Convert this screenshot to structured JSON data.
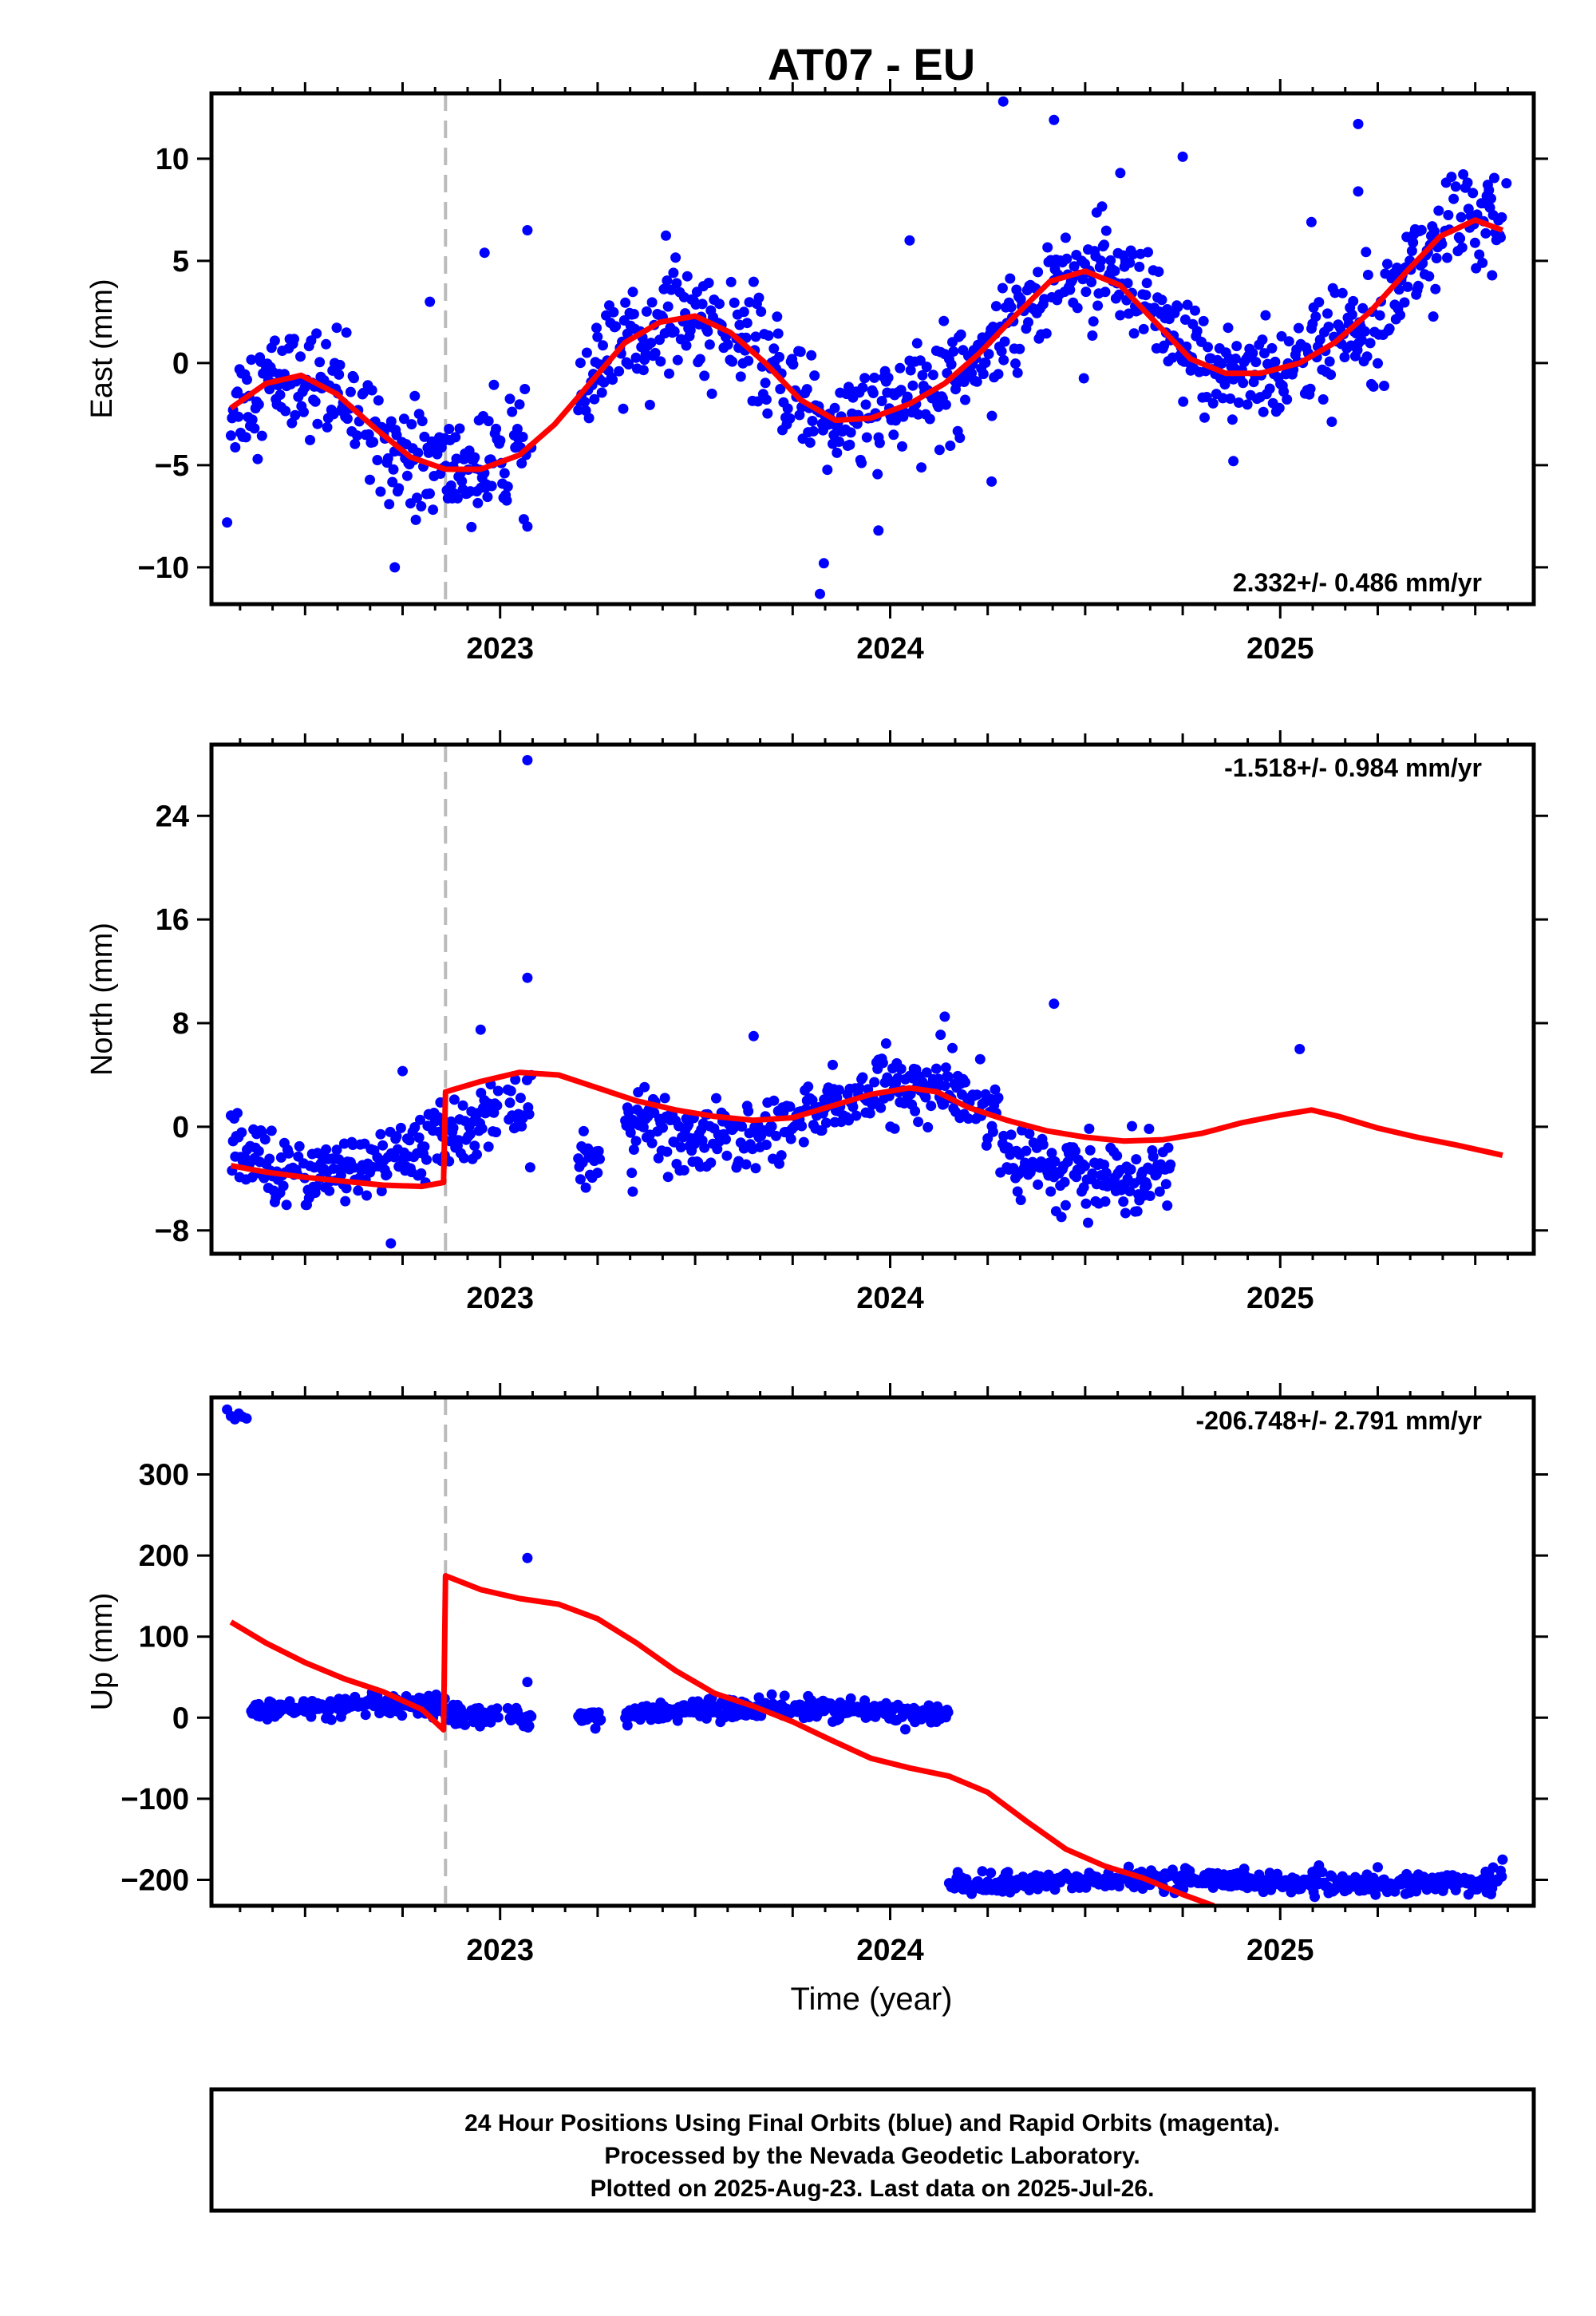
{
  "title": "AT07 - EU",
  "xlabel": "Time (year)",
  "footer": {
    "line1": "24 Hour Positions Using Final Orbits (blue) and Rapid Orbits (magenta).",
    "line2": "Processed by the Nevada Geodetic Laboratory.",
    "line3": "Plotted on 2025-Aug-23. Last data on 2025-Jul-26."
  },
  "colors": {
    "points": "#0000ff",
    "fit": "#ff0000",
    "event_line": "#bbbbbb",
    "frame": "#000000"
  },
  "chart_data": [
    {
      "type": "scatter",
      "name": "east",
      "ylabel": "East (mm)",
      "rate_text": "2.332+/- 0.486 mm/yr",
      "rate_position": "bottom-right",
      "xlim": [
        2022.26,
        2025.65
      ],
      "ylim": [
        -11.8,
        13.2
      ],
      "yticks": [
        10,
        5,
        0,
        -5,
        -10
      ],
      "ytick_labels": [
        "10",
        "5",
        "0",
        "−5",
        "−10"
      ],
      "xticks": [
        2023,
        2024,
        2025
      ],
      "xtick_labels": [
        "2023",
        "2024",
        "2025"
      ],
      "event_line_x": 2022.86,
      "fit": {
        "x": [
          2022.31,
          2022.4,
          2022.49,
          2022.58,
          2022.68,
          2022.77,
          2022.86,
          2022.95,
          2023.05,
          2023.14,
          2023.23,
          2023.32,
          2023.41,
          2023.5,
          2023.59,
          2023.68,
          2023.77,
          2023.86,
          2023.95,
          2024.05,
          2024.14,
          2024.23,
          2024.32,
          2024.41,
          2024.5,
          2024.59,
          2024.68,
          2024.77,
          2024.86,
          2024.95,
          2025.05,
          2025.14,
          2025.23,
          2025.32,
          2025.41,
          2025.5,
          2025.57
        ],
        "y": [
          -2.2,
          -1.0,
          -0.6,
          -1.5,
          -3.2,
          -4.6,
          -5.2,
          -5.2,
          -4.5,
          -3.0,
          -1.0,
          1.0,
          2.0,
          2.3,
          1.5,
          0.0,
          -1.8,
          -2.8,
          -2.7,
          -2.0,
          -1.0,
          0.5,
          2.3,
          4.0,
          4.5,
          3.8,
          2.0,
          0.2,
          -0.5,
          -0.5,
          0.0,
          1.0,
          2.5,
          4.4,
          6.2,
          7.0,
          6.5
        ]
      },
      "seasonal": {
        "trend_start": -2.2,
        "trend_end": 6.5,
        "components": [
          {
            "amp": 3.0,
            "freq": 1.0,
            "peak_year": 2023.5
          }
        ],
        "noise_sd": 1.3,
        "gaps": [
          [
            2023.08,
            2023.2
          ]
        ]
      },
      "outliers": [
        {
          "x": 2022.3,
          "y": -7.8
        },
        {
          "x": 2022.73,
          "y": -10.0
        },
        {
          "x": 2022.82,
          "y": 3.0
        },
        {
          "x": 2022.96,
          "y": 5.4
        },
        {
          "x": 2023.07,
          "y": 6.5
        },
        {
          "x": 2023.07,
          "y": -8.0
        },
        {
          "x": 2023.82,
          "y": -11.3
        },
        {
          "x": 2023.83,
          "y": -9.8
        },
        {
          "x": 2024.05,
          "y": 6.0
        },
        {
          "x": 2024.29,
          "y": 12.8
        },
        {
          "x": 2024.42,
          "y": 11.9
        },
        {
          "x": 2024.59,
          "y": 9.3
        },
        {
          "x": 2024.75,
          "y": 10.1
        },
        {
          "x": 2025.2,
          "y": 11.7
        },
        {
          "x": 2025.2,
          "y": 8.4
        },
        {
          "x": 2025.58,
          "y": 8.8
        },
        {
          "x": 2024.26,
          "y": -5.8
        },
        {
          "x": 2023.97,
          "y": -8.2
        },
        {
          "x": 2024.88,
          "y": -4.8
        },
        {
          "x": 2025.08,
          "y": 6.9
        }
      ]
    },
    {
      "type": "scatter",
      "name": "north",
      "ylabel": "North (mm)",
      "rate_text": "-1.518+/- 0.984 mm/yr",
      "rate_position": "top-right",
      "xlim": [
        2022.26,
        2025.65
      ],
      "ylim": [
        -9.8,
        29.5
      ],
      "yticks": [
        24,
        16,
        8,
        0,
        -8
      ],
      "ytick_labels": [
        "24",
        "16",
        "8",
        "0",
        "−8"
      ],
      "xticks": [
        2023,
        2024,
        2025
      ],
      "xtick_labels": [
        "2023",
        "2024",
        "2025"
      ],
      "event_line_x": 2022.86,
      "fit": {
        "x": [
          2022.31,
          2022.4,
          2022.5,
          2022.6,
          2022.7,
          2022.8,
          2022.855,
          2022.86,
          2022.95,
          2023.05,
          2023.15,
          2023.25,
          2023.35,
          2023.45,
          2023.55,
          2023.65,
          2023.75,
          2023.85,
          2023.95,
          2024.05,
          2024.12,
          2024.2,
          2024.3,
          2024.4,
          2024.5,
          2024.6,
          2024.7,
          2024.8,
          2024.9,
          2025.0,
          2025.08,
          2025.15,
          2025.25,
          2025.35,
          2025.45,
          2025.57
        ],
        "y": [
          -3.0,
          -3.5,
          -3.9,
          -4.2,
          -4.5,
          -4.6,
          -4.3,
          2.7,
          3.5,
          4.2,
          4.0,
          3.0,
          2.0,
          1.3,
          0.8,
          0.5,
          0.7,
          1.6,
          2.5,
          3.0,
          2.7,
          1.5,
          0.5,
          -0.3,
          -0.8,
          -1.1,
          -1.0,
          -0.5,
          0.3,
          0.9,
          1.3,
          0.8,
          -0.1,
          -0.8,
          -1.4,
          -2.2
        ]
      },
      "seasonal": {
        "trend_start": -3.5,
        "trend_end": 1.0,
        "components": [
          {
            "amp": 2.0,
            "freq": 1.0,
            "peak_year": 2024.05
          }
        ],
        "noise_sd": 1.3,
        "gaps": [
          [
            2022.995,
            2023.018
          ],
          [
            2023.08,
            2023.2
          ],
          [
            2023.26,
            2023.32
          ]
        ],
        "offsets": [
          [
            2022.31,
            2022.86,
            -1.5
          ],
          [
            2022.86,
            2023.08,
            -1.2
          ],
          [
            2023.2,
            2023.26,
            -3.5
          ],
          [
            2023.32,
            2024.28,
            1.0
          ],
          [
            2024.28,
            2024.72,
            -2.0
          ]
        ]
      },
      "outliers": [
        {
          "x": 2023.07,
          "y": 28.3
        },
        {
          "x": 2023.07,
          "y": 11.5
        },
        {
          "x": 2022.95,
          "y": 7.5
        },
        {
          "x": 2022.72,
          "y": -9.0
        },
        {
          "x": 2022.75,
          "y": 4.3
        },
        {
          "x": 2024.42,
          "y": 9.5
        },
        {
          "x": 2023.34,
          "y": -5.0
        },
        {
          "x": 2023.65,
          "y": 7.0
        },
        {
          "x": 2024.14,
          "y": 8.5
        },
        {
          "x": 2025.05,
          "y": 6.0
        }
      ]
    },
    {
      "type": "scatter",
      "name": "up",
      "ylabel": "Up (mm)",
      "rate_text": "-206.748+/- 2.791 mm/yr",
      "rate_position": "top-right",
      "xlim": [
        2022.26,
        2025.65
      ],
      "ylim": [
        -232,
        395
      ],
      "yticks": [
        300,
        200,
        100,
        0,
        -100,
        -200
      ],
      "ytick_labels": [
        "300",
        "200",
        "100",
        "0",
        "−100",
        "−200"
      ],
      "xticks": [
        2023,
        2024,
        2025
      ],
      "xtick_labels": [
        "2023",
        "2024",
        "2025"
      ],
      "event_line_x": 2022.86,
      "fit": {
        "x": [
          2022.31,
          2022.4,
          2022.5,
          2022.6,
          2022.7,
          2022.8,
          2022.855,
          2022.86,
          2022.95,
          2023.05,
          2023.15,
          2023.25,
          2023.35,
          2023.45,
          2023.55,
          2023.65,
          2023.75,
          2023.85,
          2023.95,
          2024.05,
          2024.15,
          2024.25,
          2024.35,
          2024.45,
          2024.55,
          2024.65,
          2024.75,
          2024.83
        ],
        "y": [
          118,
          92,
          68,
          48,
          32,
          10,
          -15,
          175,
          158,
          147,
          140,
          122,
          92,
          58,
          30,
          14,
          -5,
          -28,
          -50,
          -62,
          -72,
          -92,
          -128,
          -162,
          -183,
          -198,
          -218,
          -232
        ]
      },
      "seasonal": {
        "trend_start": 0,
        "trend_end": 0,
        "components": [
          {
            "amp": 4.0,
            "freq": 1.0,
            "peak_year": 2023.7
          }
        ],
        "noise_sd": 6,
        "gaps": [
          [
            2022.31,
            2022.36
          ],
          [
            2022.995,
            2023.018
          ],
          [
            2023.08,
            2023.2
          ],
          [
            2023.26,
            2023.32
          ]
        ],
        "offsets": [
          [
            2022.36,
            2022.86,
            10
          ],
          [
            2022.86,
            2023.08,
            2
          ],
          [
            2023.2,
            2023.26,
            5
          ],
          [
            2023.32,
            2024.15,
            8
          ],
          [
            2024.15,
            2025.6,
            -202
          ]
        ]
      },
      "outliers": [
        {
          "x": 2022.3,
          "y": 380
        },
        {
          "x": 2022.31,
          "y": 372
        },
        {
          "x": 2022.32,
          "y": 368
        },
        {
          "x": 2022.33,
          "y": 375
        },
        {
          "x": 2022.34,
          "y": 371
        },
        {
          "x": 2022.35,
          "y": 369
        },
        {
          "x": 2023.07,
          "y": 197
        },
        {
          "x": 2023.07,
          "y": 44
        },
        {
          "x": 2025.57,
          "y": -175
        }
      ]
    }
  ]
}
